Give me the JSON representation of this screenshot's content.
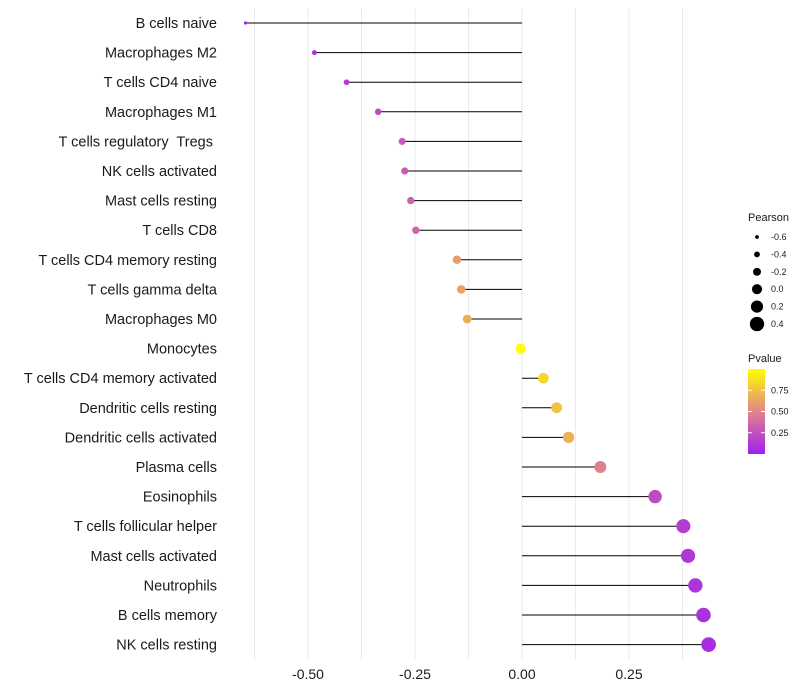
{
  "chart_data": {
    "type": "lollipop",
    "title": "",
    "xlabel": "",
    "ylabel": "",
    "xlim": [
      -0.65,
      0.44
    ],
    "xticks": [
      -0.5,
      -0.25,
      0.0,
      0.25
    ],
    "xtick_labels": [
      "-0.50",
      "-0.25",
      "0.00",
      "0.25"
    ],
    "minor_gridlines": [
      -0.625,
      -0.375,
      -0.125,
      0.125,
      0.375
    ],
    "points": [
      {
        "label": "B cells naive",
        "value": -0.646,
        "pvalue": 0.02
      },
      {
        "label": "Macrophages M2",
        "value": -0.485,
        "pvalue": 0.08
      },
      {
        "label": "T cells CD4 naive",
        "value": -0.41,
        "pvalue": 0.15
      },
      {
        "label": "Macrophages M1",
        "value": -0.336,
        "pvalue": 0.22
      },
      {
        "label": "T cells regulatory  Tregs ",
        "value": -0.28,
        "pvalue": 0.3
      },
      {
        "label": "NK cells activated",
        "value": -0.274,
        "pvalue": 0.31
      },
      {
        "label": "Mast cells resting",
        "value": -0.26,
        "pvalue": 0.33
      },
      {
        "label": "T cells CD8",
        "value": -0.248,
        "pvalue": 0.35
      },
      {
        "label": "T cells CD4 memory resting",
        "value": -0.152,
        "pvalue": 0.6
      },
      {
        "label": "T cells gamma delta",
        "value": -0.142,
        "pvalue": 0.63
      },
      {
        "label": "Macrophages M0",
        "value": -0.128,
        "pvalue": 0.67
      },
      {
        "label": "Monocytes",
        "value": -0.003,
        "pvalue": 0.99
      },
      {
        "label": "T cells CD4 memory activated",
        "value": 0.05,
        "pvalue": 0.84
      },
      {
        "label": "Dendritic cells resting",
        "value": 0.081,
        "pvalue": 0.76
      },
      {
        "label": "Dendritic cells activated",
        "value": 0.109,
        "pvalue": 0.68
      },
      {
        "label": "Plasma cells",
        "value": 0.183,
        "pvalue": 0.48
      },
      {
        "label": "Eosinophils",
        "value": 0.311,
        "pvalue": 0.22
      },
      {
        "label": "T cells follicular helper",
        "value": 0.377,
        "pvalue": 0.14
      },
      {
        "label": "Mast cells activated",
        "value": 0.388,
        "pvalue": 0.12
      },
      {
        "label": "Neutrophils",
        "value": 0.405,
        "pvalue": 0.1
      },
      {
        "label": "B cells memory",
        "value": 0.424,
        "pvalue": 0.08
      },
      {
        "label": "NK cells resting",
        "value": 0.436,
        "pvalue": 0.07
      }
    ],
    "legend": {
      "size": {
        "title": "Pearson",
        "values": [
          -0.6,
          -0.4,
          -0.2,
          0.0,
          0.2,
          0.4
        ],
        "labels": [
          "-0.6",
          "-0.4",
          "-0.2",
          "0.0",
          "0.2",
          "0.4"
        ]
      },
      "color": {
        "title": "Pvalue",
        "ticks": [
          0.25,
          0.5,
          0.75
        ],
        "tick_labels": [
          "0.25",
          "0.50",
          "0.75"
        ],
        "range": [
          0.0,
          1.0
        ],
        "low_color": "#a020f0",
        "mid_color": "#e3838a",
        "high_color": "#ffff00"
      }
    }
  }
}
